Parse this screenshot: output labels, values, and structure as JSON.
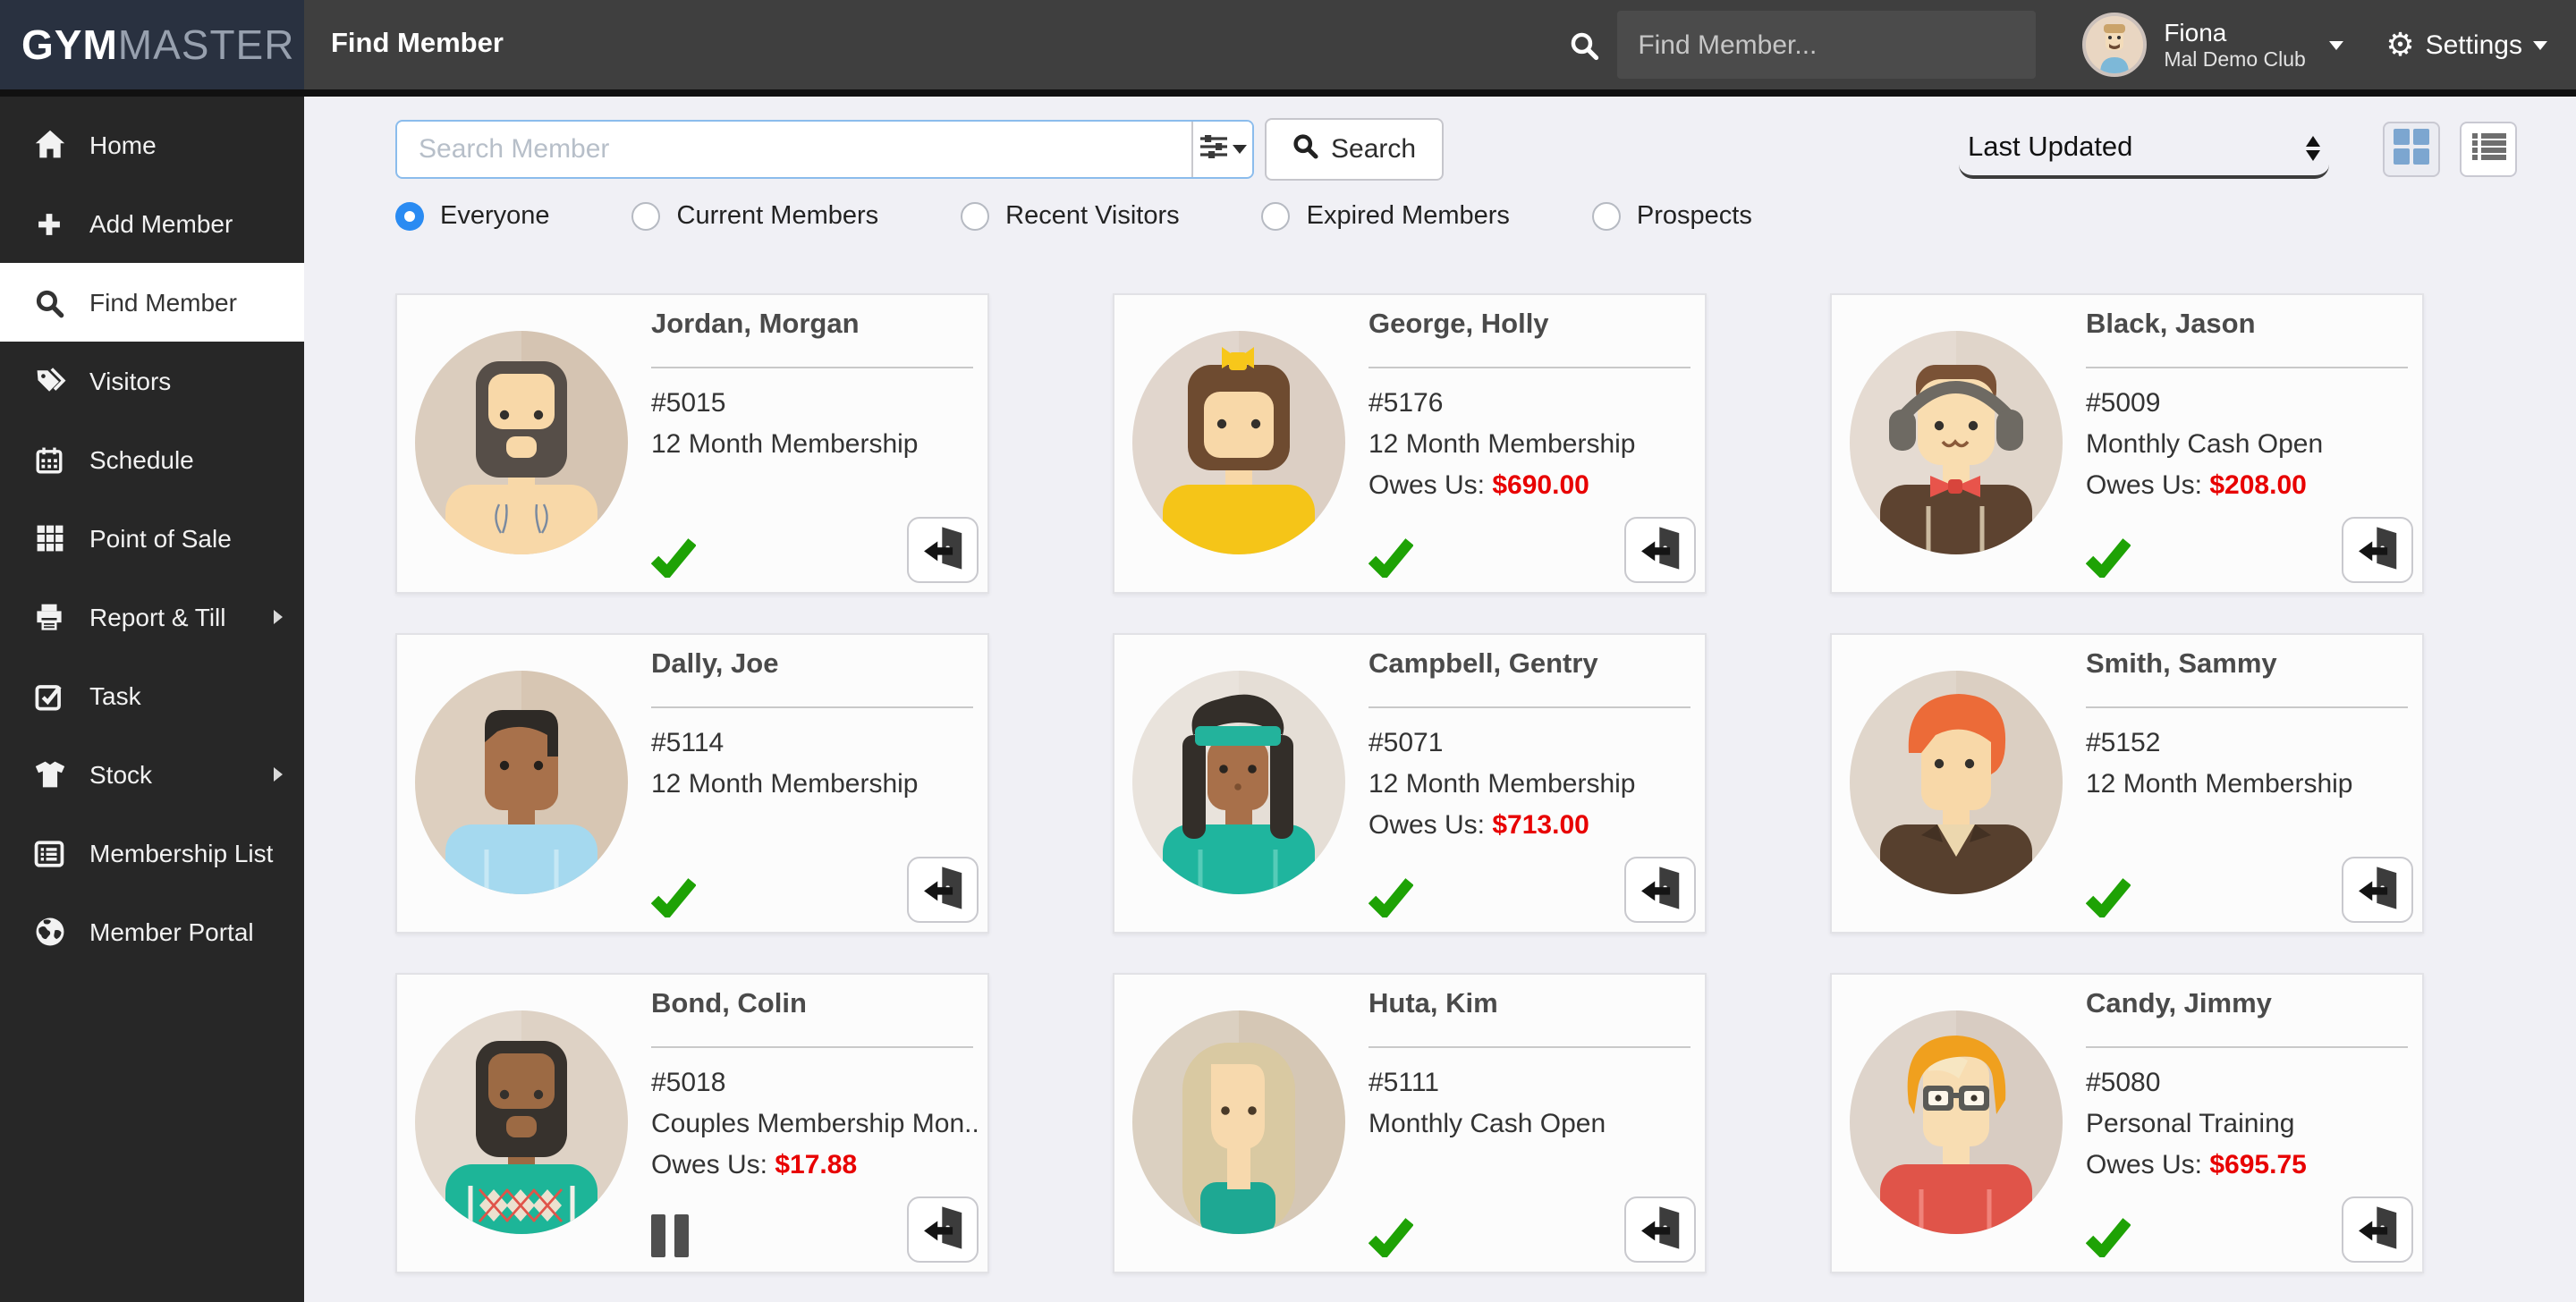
{
  "brand": {
    "gym": "GYM",
    "master": "MASTER"
  },
  "topbar": {
    "title": "Find Member",
    "search_placeholder": "Find Member...",
    "user": {
      "name": "Fiona",
      "club": "Mal Demo Club"
    },
    "settings_label": "Settings"
  },
  "sidebar": {
    "items": [
      {
        "label": "Home",
        "icon": "home-icon",
        "active": false,
        "chevron": false
      },
      {
        "label": "Add Member",
        "icon": "plus-icon",
        "active": false,
        "chevron": false
      },
      {
        "label": "Find Member",
        "icon": "search-icon",
        "active": true,
        "chevron": false
      },
      {
        "label": "Visitors",
        "icon": "tags-icon",
        "active": false,
        "chevron": false
      },
      {
        "label": "Schedule",
        "icon": "calendar-icon",
        "active": false,
        "chevron": false
      },
      {
        "label": "Point of Sale",
        "icon": "grid-icon",
        "active": false,
        "chevron": false
      },
      {
        "label": "Report & Till",
        "icon": "printer-icon",
        "active": false,
        "chevron": true
      },
      {
        "label": "Task",
        "icon": "check-square-icon",
        "active": false,
        "chevron": false
      },
      {
        "label": "Stock",
        "icon": "shirt-icon",
        "active": false,
        "chevron": true
      },
      {
        "label": "Membership List",
        "icon": "list-icon",
        "active": false,
        "chevron": false
      },
      {
        "label": "Member Portal",
        "icon": "globe-icon",
        "active": false,
        "chevron": false
      }
    ]
  },
  "filters": {
    "search_placeholder": "Search Member",
    "search_button": "Search",
    "sort": "Last Updated",
    "radios": [
      {
        "label": "Everyone",
        "selected": true
      },
      {
        "label": "Current Members",
        "selected": false
      },
      {
        "label": "Recent Visitors",
        "selected": false
      },
      {
        "label": "Expired Members",
        "selected": false
      },
      {
        "label": "Prospects",
        "selected": false
      }
    ]
  },
  "labels": {
    "owes_prefix": "Owes Us: "
  },
  "colors": {
    "accent_blue": "#2a8bf2",
    "owes_red": "#e80000",
    "check_green": "#1ea205",
    "topbar_bg": "#3f3f3f",
    "sidebar_bg": "#272727",
    "logo_bg": "#293140",
    "page_bg": "#f0f0f5"
  },
  "members": [
    {
      "name": "Jordan, Morgan",
      "id": "#5015",
      "membership": "12 Month Membership",
      "owes": null,
      "status": "check",
      "avatar": {
        "style": "beard",
        "bg": "#d5c4b2",
        "skin": "#f8d8a8",
        "hair": "#564e48",
        "shirt": "#f8d8a8"
      }
    },
    {
      "name": "George, Holly",
      "id": "#5176",
      "membership": "12 Month Membership",
      "owes": "$690.00",
      "status": "check",
      "avatar": {
        "style": "bob",
        "bg": "#dccfc4",
        "skin": "#f8d8a8",
        "hair": "#6e4b30",
        "shirt": "#f5c518"
      }
    },
    {
      "name": "Black, Jason",
      "id": "#5009",
      "membership": "Monthly Cash Open",
      "owes": "$208.00",
      "status": "check",
      "avatar": {
        "style": "headphones",
        "bg": "#e0d5ca",
        "skin": "#f9ddb0",
        "hair": "#7a5236",
        "shirt": "#5d4330"
      }
    },
    {
      "name": "Dally, Joe",
      "id": "#5114",
      "membership": "12 Month Membership",
      "owes": null,
      "status": "check",
      "avatar": {
        "style": "cap",
        "bg": "#d7c6b3",
        "skin": "#a8714b",
        "hair": "#2e2a26",
        "shirt": "#a5d9ef"
      }
    },
    {
      "name": "Campbell, Gentry",
      "id": "#5071",
      "membership": "12 Month Membership",
      "owes": "$713.00",
      "status": "check",
      "avatar": {
        "style": "braids",
        "bg": "#e5ded6",
        "skin": "#a8704a",
        "hair": "#332e29",
        "shirt": "#1fb59e"
      }
    },
    {
      "name": "Smith, Sammy",
      "id": "#5152",
      "membership": "12 Month Membership",
      "owes": null,
      "status": "check",
      "avatar": {
        "style": "swoosh",
        "bg": "#dbcfc2",
        "skin": "#f8d8a8",
        "hair": "#ec6b38",
        "shirt": "#57402e"
      }
    },
    {
      "name": "Bond, Colin",
      "id": "#5018",
      "membership": "Couples Membership Mon...",
      "owes": "$17.88",
      "status": "pause",
      "avatar": {
        "style": "beard",
        "bg": "#ded2c5",
        "skin": "#9c6a44",
        "hair": "#37322d",
        "shirt": "#1db598",
        "pattern": "argyle"
      }
    },
    {
      "name": "Huta, Kim",
      "id": "#5111",
      "membership": "Monthly Cash Open",
      "owes": null,
      "status": "check",
      "avatar": {
        "style": "longhair",
        "bg": "#d5c7b5",
        "skin": "#f7d9ad",
        "hair": "#d9c9a2",
        "shirt": "#1ea893"
      }
    },
    {
      "name": "Candy, Jimmy",
      "id": "#5080",
      "membership": "Personal Training",
      "owes": "$695.75",
      "status": "check",
      "avatar": {
        "style": "glasses",
        "bg": "#d8ccc2",
        "skin": "#f8ddb2",
        "hair": "#f0a01e",
        "shirt": "#e05449"
      }
    }
  ]
}
